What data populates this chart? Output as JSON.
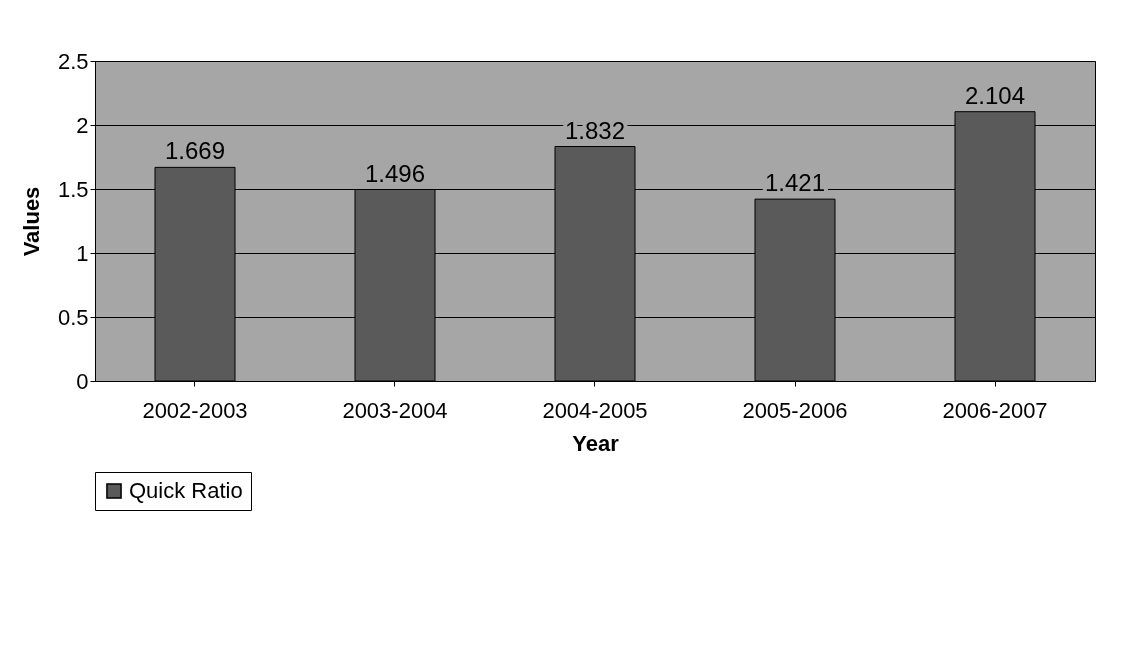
{
  "chart_data": {
    "type": "bar",
    "xlabel": "Year",
    "ylabel": "Values",
    "categories": [
      "2002-2003",
      "2003-2004",
      "2004-2005",
      "2005-2006",
      "2006-2007"
    ],
    "series": [
      {
        "name": "Quick Ratio",
        "color": "#5a5a5a",
        "values": [
          1.669,
          1.496,
          1.832,
          1.421,
          2.104
        ]
      }
    ],
    "ylim": [
      0,
      2.5
    ],
    "yticks": [
      0,
      0.5,
      1,
      1.5,
      2,
      2.5
    ],
    "grid": "y",
    "data_labels": true,
    "legend": "bottom"
  }
}
